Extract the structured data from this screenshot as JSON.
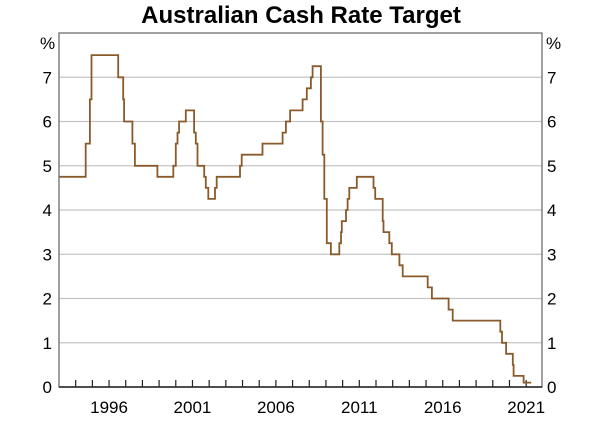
{
  "chart_data": {
    "type": "line",
    "title": "Australian Cash Rate Target",
    "xlabel": "",
    "ylabel": "%",
    "ylabel_right": "%",
    "xlim": [
      1993.0,
      2021.95
    ],
    "ylim": [
      0,
      8
    ],
    "yticks": [
      0,
      1,
      2,
      3,
      4,
      5,
      6,
      7
    ],
    "xtick_labels": [
      "1996",
      "2001",
      "2006",
      "2011",
      "2016",
      "2021"
    ],
    "xtick_label_years": [
      1996,
      2001,
      2006,
      2011,
      2016,
      2021
    ],
    "minor_ticks_every_year": true,
    "grid": "horizontal",
    "line_color": "#8b5a2b",
    "series": [
      {
        "name": "Cash Rate Target",
        "step": true,
        "points": [
          [
            1993.0,
            4.75
          ],
          [
            1994.6,
            5.5
          ],
          [
            1994.85,
            6.5
          ],
          [
            1994.95,
            7.5
          ],
          [
            1996.55,
            7.0
          ],
          [
            1996.85,
            6.5
          ],
          [
            1996.9,
            6.0
          ],
          [
            1997.4,
            5.5
          ],
          [
            1997.55,
            5.0
          ],
          [
            1998.9,
            4.75
          ],
          [
            1999.85,
            5.0
          ],
          [
            2000.0,
            5.5
          ],
          [
            2000.1,
            5.75
          ],
          [
            2000.2,
            6.0
          ],
          [
            2000.6,
            6.25
          ],
          [
            2001.1,
            5.75
          ],
          [
            2001.2,
            5.5
          ],
          [
            2001.3,
            5.0
          ],
          [
            2001.7,
            4.75
          ],
          [
            2001.8,
            4.5
          ],
          [
            2001.95,
            4.25
          ],
          [
            2002.35,
            4.5
          ],
          [
            2002.45,
            4.75
          ],
          [
            2003.85,
            5.0
          ],
          [
            2003.95,
            5.25
          ],
          [
            2005.2,
            5.5
          ],
          [
            2006.4,
            5.75
          ],
          [
            2006.6,
            6.0
          ],
          [
            2006.85,
            6.25
          ],
          [
            2007.6,
            6.5
          ],
          [
            2007.85,
            6.75
          ],
          [
            2008.1,
            7.0
          ],
          [
            2008.2,
            7.25
          ],
          [
            2008.7,
            6.0
          ],
          [
            2008.8,
            5.25
          ],
          [
            2008.9,
            4.25
          ],
          [
            2009.05,
            3.25
          ],
          [
            2009.3,
            3.0
          ],
          [
            2009.8,
            3.25
          ],
          [
            2009.9,
            3.5
          ],
          [
            2009.95,
            3.75
          ],
          [
            2010.2,
            4.0
          ],
          [
            2010.3,
            4.25
          ],
          [
            2010.4,
            4.5
          ],
          [
            2010.85,
            4.75
          ],
          [
            2011.85,
            4.5
          ],
          [
            2011.95,
            4.25
          ],
          [
            2012.4,
            3.75
          ],
          [
            2012.45,
            3.5
          ],
          [
            2012.8,
            3.25
          ],
          [
            2012.95,
            3.0
          ],
          [
            2013.4,
            2.75
          ],
          [
            2013.6,
            2.5
          ],
          [
            2015.1,
            2.25
          ],
          [
            2015.35,
            2.0
          ],
          [
            2016.35,
            1.75
          ],
          [
            2016.6,
            1.5
          ],
          [
            2019.45,
            1.25
          ],
          [
            2019.55,
            1.0
          ],
          [
            2019.8,
            0.75
          ],
          [
            2020.2,
            0.5
          ],
          [
            2020.25,
            0.25
          ],
          [
            2020.85,
            0.1
          ],
          [
            2021.3,
            0.1
          ]
        ]
      }
    ]
  }
}
